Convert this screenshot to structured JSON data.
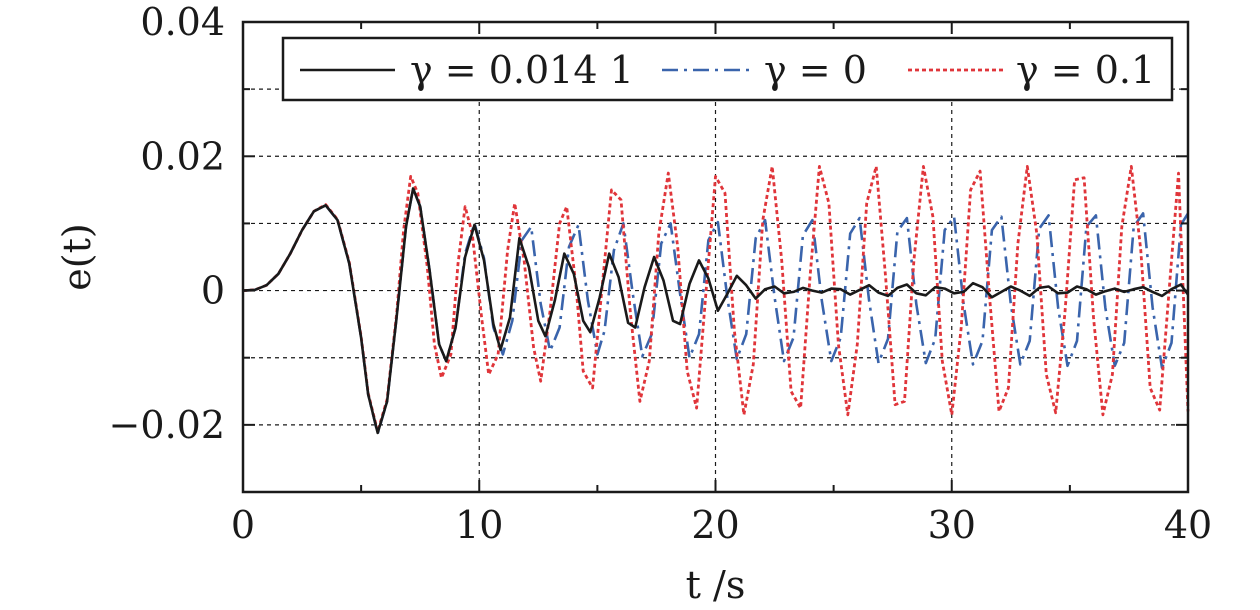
{
  "chart_data": {
    "type": "line",
    "xlabel": "t /s",
    "ylabel": "e(t)",
    "xlim": [
      0,
      40
    ],
    "ylim": [
      -0.03,
      0.04
    ],
    "xticks": [
      0,
      10,
      20,
      30,
      40
    ],
    "xtick_labels": [
      "0",
      "10",
      "20",
      "30",
      "40"
    ],
    "yticks": [
      -0.02,
      0,
      0.02,
      0.04
    ],
    "ytick_labels": [
      "−0.02",
      "0",
      "0.02",
      "0.04"
    ],
    "grid": true,
    "legend_position": "top-right",
    "series": [
      {
        "name": "γ = 0.014 1",
        "color": "#1a1a1a",
        "style": "solid",
        "points": [
          [
            0,
            0
          ],
          [
            0.5,
            0.0001
          ],
          [
            1,
            0.0008
          ],
          [
            1.5,
            0.0025
          ],
          [
            2,
            0.0055
          ],
          [
            2.5,
            0.009
          ],
          [
            3,
            0.0118
          ],
          [
            3.5,
            0.0127
          ],
          [
            4,
            0.0105
          ],
          [
            4.5,
            0.004
          ],
          [
            5,
            -0.007
          ],
          [
            5.3,
            -0.0155
          ],
          [
            5.7,
            -0.0212
          ],
          [
            6.1,
            -0.0165
          ],
          [
            6.5,
            -0.004
          ],
          [
            6.9,
            0.0095
          ],
          [
            7.2,
            0.0152
          ],
          [
            7.5,
            0.0125
          ],
          [
            7.9,
            0.003
          ],
          [
            8.3,
            -0.008
          ],
          [
            8.6,
            -0.0105
          ],
          [
            9,
            -0.0055
          ],
          [
            9.4,
            0.005
          ],
          [
            9.8,
            0.0098
          ],
          [
            10.2,
            0.0045
          ],
          [
            10.6,
            -0.005
          ],
          [
            10.9,
            -0.0088
          ],
          [
            11.3,
            -0.004
          ],
          [
            11.7,
            0.0078
          ],
          [
            12.1,
            0.0035
          ],
          [
            12.5,
            -0.0045
          ],
          [
            12.8,
            -0.0068
          ],
          [
            13.2,
            -0.0015
          ],
          [
            13.6,
            0.0055
          ],
          [
            14,
            0.0025
          ],
          [
            14.4,
            -0.0045
          ],
          [
            14.7,
            -0.0062
          ],
          [
            15.1,
            -0.001
          ],
          [
            15.5,
            0.0055
          ],
          [
            15.9,
            0.002
          ],
          [
            16.3,
            -0.0048
          ],
          [
            16.6,
            -0.0055
          ],
          [
            17,
            0.0005
          ],
          [
            17.4,
            0.005
          ],
          [
            17.8,
            0.0015
          ],
          [
            18.2,
            -0.0045
          ],
          [
            18.5,
            -0.005
          ],
          [
            18.9,
            0.001
          ],
          [
            19.3,
            0.0045
          ],
          [
            19.7,
            0.0018
          ],
          [
            20.1,
            -0.003
          ],
          [
            20.5,
            -0.0005
          ],
          [
            20.9,
            0.0022
          ],
          [
            21.3,
            0.0008
          ],
          [
            21.7,
            -0.0012
          ],
          [
            22.1,
            0.0002
          ],
          [
            22.5,
            0.0006
          ],
          [
            22.9,
            -0.0004
          ],
          [
            23.3,
            -0.0002
          ],
          [
            23.7,
            0.0004
          ],
          [
            24.1,
            0
          ],
          [
            24.5,
            -0.0003
          ],
          [
            24.9,
            0.0003
          ],
          [
            25.3,
            0.0002
          ],
          [
            25.7,
            -0.0006
          ],
          [
            26.1,
            0.0001
          ],
          [
            26.5,
            0.0008
          ],
          [
            26.9,
            -0.0003
          ],
          [
            27.3,
            -0.0008
          ],
          [
            27.7,
            0.0004
          ],
          [
            28.1,
            0.0009
          ],
          [
            28.5,
            -0.0004
          ],
          [
            28.9,
            -0.0007
          ],
          [
            29.3,
            0.0005
          ],
          [
            29.7,
            0.0003
          ],
          [
            30.1,
            -0.0004
          ],
          [
            30.5,
            -0.0002
          ],
          [
            30.9,
            0.0011
          ],
          [
            31.3,
            0.0005
          ],
          [
            31.7,
            -0.001
          ],
          [
            32.1,
            -0.0002
          ],
          [
            32.5,
            0.0006
          ],
          [
            32.9,
            0
          ],
          [
            33.3,
            -0.0008
          ],
          [
            33.7,
            0.0004
          ],
          [
            34.1,
            0.0006
          ],
          [
            34.5,
            -0.0004
          ],
          [
            34.9,
            -0.0003
          ],
          [
            35.3,
            0.0006
          ],
          [
            35.7,
            0.0002
          ],
          [
            36.1,
            -0.0006
          ],
          [
            36.5,
            -0.0001
          ],
          [
            36.9,
            0.0003
          ],
          [
            37.3,
            -0.0002
          ],
          [
            37.7,
            0.0002
          ],
          [
            38.1,
            0.0005
          ],
          [
            38.5,
            -0.0002
          ],
          [
            38.9,
            -0.0008
          ],
          [
            39.3,
            0.0002
          ],
          [
            39.7,
            0.0009
          ],
          [
            40,
            -0.0006
          ]
        ]
      },
      {
        "name": "γ = 0",
        "color": "#3a64ac",
        "style": "dashdot",
        "points": [
          [
            0,
            0
          ],
          [
            0.5,
            0.0001
          ],
          [
            1,
            0.0008
          ],
          [
            1.5,
            0.0025
          ],
          [
            2,
            0.0055
          ],
          [
            2.5,
            0.009
          ],
          [
            3,
            0.0118
          ],
          [
            3.5,
            0.0127
          ],
          [
            4,
            0.0105
          ],
          [
            4.5,
            0.004
          ],
          [
            5,
            -0.007
          ],
          [
            5.3,
            -0.0155
          ],
          [
            5.7,
            -0.0213
          ],
          [
            6.1,
            -0.0165
          ],
          [
            6.5,
            -0.004
          ],
          [
            6.9,
            0.0095
          ],
          [
            7.2,
            0.0152
          ],
          [
            7.5,
            0.0125
          ],
          [
            7.9,
            0.003
          ],
          [
            8.3,
            -0.008
          ],
          [
            8.6,
            -0.0105
          ],
          [
            9,
            -0.0055
          ],
          [
            9.4,
            0.0055
          ],
          [
            9.8,
            0.01
          ],
          [
            10.2,
            0.0048
          ],
          [
            10.6,
            -0.0055
          ],
          [
            11,
            -0.0095
          ],
          [
            11.4,
            -0.0045
          ],
          [
            11.8,
            0.0075
          ],
          [
            12.2,
            0.0095
          ],
          [
            12.6,
            -0.002
          ],
          [
            13,
            -0.009
          ],
          [
            13.4,
            -0.0055
          ],
          [
            13.8,
            0.0065
          ],
          [
            14.2,
            0.0098
          ],
          [
            14.6,
            -0.0015
          ],
          [
            15,
            -0.0095
          ],
          [
            15.3,
            -0.006
          ],
          [
            15.7,
            0.006
          ],
          [
            16.1,
            0.01
          ],
          [
            16.5,
            -0.0005
          ],
          [
            16.9,
            -0.0098
          ],
          [
            17.3,
            -0.0065
          ],
          [
            17.7,
            0.007
          ],
          [
            18.1,
            0.01
          ],
          [
            18.5,
            -0.0005
          ],
          [
            18.9,
            -0.01
          ],
          [
            19.3,
            -0.0065
          ],
          [
            19.7,
            0.0075
          ],
          [
            20.1,
            0.0102
          ],
          [
            20.5,
            -0.001
          ],
          [
            20.9,
            -0.0102
          ],
          [
            21.3,
            -0.0065
          ],
          [
            21.7,
            0.0078
          ],
          [
            22.1,
            0.0105
          ],
          [
            22.5,
            -0.001
          ],
          [
            22.9,
            -0.0105
          ],
          [
            23.3,
            -0.007
          ],
          [
            23.7,
            0.0082
          ],
          [
            24.1,
            0.0105
          ],
          [
            24.5,
            -0.0015
          ],
          [
            24.9,
            -0.0105
          ],
          [
            25.3,
            -0.007
          ],
          [
            25.7,
            0.0085
          ],
          [
            26.1,
            0.0108
          ],
          [
            26.5,
            -0.0015
          ],
          [
            26.9,
            -0.0108
          ],
          [
            27.3,
            -0.0072
          ],
          [
            27.7,
            0.0088
          ],
          [
            28.1,
            0.0108
          ],
          [
            28.5,
            -0.002
          ],
          [
            28.9,
            -0.0108
          ],
          [
            29.3,
            -0.0072
          ],
          [
            29.7,
            0.009
          ],
          [
            30.1,
            0.011
          ],
          [
            30.5,
            -0.002
          ],
          [
            30.9,
            -0.011
          ],
          [
            31.3,
            -0.0075
          ],
          [
            31.7,
            0.009
          ],
          [
            32.1,
            0.011
          ],
          [
            32.5,
            -0.002
          ],
          [
            32.9,
            -0.011
          ],
          [
            33.3,
            -0.0075
          ],
          [
            33.7,
            0.0092
          ],
          [
            34.1,
            0.0112
          ],
          [
            34.5,
            -0.0025
          ],
          [
            34.9,
            -0.0112
          ],
          [
            35.3,
            -0.0075
          ],
          [
            35.7,
            0.0095
          ],
          [
            36.1,
            0.0112
          ],
          [
            36.5,
            -0.0025
          ],
          [
            36.9,
            -0.0112
          ],
          [
            37.3,
            -0.0078
          ],
          [
            37.7,
            0.0095
          ],
          [
            38.1,
            0.0115
          ],
          [
            38.5,
            -0.0025
          ],
          [
            38.9,
            -0.0115
          ],
          [
            39.3,
            -0.0078
          ],
          [
            39.7,
            0.0098
          ],
          [
            40,
            0.0115
          ]
        ]
      },
      {
        "name": "γ = 0.1",
        "color": "#e0353a",
        "style": "dotted",
        "points": [
          [
            0,
            0
          ],
          [
            0.5,
            0.0001
          ],
          [
            1,
            0.0008
          ],
          [
            1.5,
            0.0025
          ],
          [
            2,
            0.0055
          ],
          [
            2.5,
            0.009
          ],
          [
            3,
            0.0118
          ],
          [
            3.5,
            0.0128
          ],
          [
            4,
            0.0106
          ],
          [
            4.5,
            0.0042
          ],
          [
            5,
            -0.0068
          ],
          [
            5.3,
            -0.0153
          ],
          [
            5.7,
            -0.021
          ],
          [
            6.1,
            -0.0162
          ],
          [
            6.5,
            -0.0035
          ],
          [
            6.8,
            0.009
          ],
          [
            7.1,
            0.017
          ],
          [
            7.4,
            0.0145
          ],
          [
            7.8,
            0.0035
          ],
          [
            8.1,
            -0.008
          ],
          [
            8.4,
            -0.013
          ],
          [
            8.8,
            -0.0095
          ],
          [
            9.1,
            0.004
          ],
          [
            9.4,
            0.0125
          ],
          [
            9.7,
            0.0085
          ],
          [
            10.1,
            -0.004
          ],
          [
            10.4,
            -0.0125
          ],
          [
            10.8,
            -0.0095
          ],
          [
            11.2,
            0.006
          ],
          [
            11.5,
            0.013
          ],
          [
            11.9,
            0.0045
          ],
          [
            12.3,
            -0.0085
          ],
          [
            12.6,
            -0.0135
          ],
          [
            13,
            -0.003
          ],
          [
            13.4,
            0.01
          ],
          [
            13.7,
            0.0125
          ],
          [
            14.1,
            0.0005
          ],
          [
            14.4,
            -0.012
          ],
          [
            14.8,
            -0.0145
          ],
          [
            15.2,
            0.0005
          ],
          [
            15.6,
            0.015
          ],
          [
            16,
            0.0135
          ],
          [
            16.4,
            -0.0035
          ],
          [
            16.8,
            -0.0165
          ],
          [
            17.2,
            -0.0105
          ],
          [
            17.6,
            0.0085
          ],
          [
            18,
            0.0175
          ],
          [
            18.4,
            0.0065
          ],
          [
            18.8,
            -0.012
          ],
          [
            19.2,
            -0.0175
          ],
          [
            19.6,
            0
          ],
          [
            20,
            0.017
          ],
          [
            20.4,
            0.0145
          ],
          [
            20.8,
            -0.006
          ],
          [
            21.2,
            -0.0185
          ],
          [
            21.6,
            -0.011
          ],
          [
            22,
            0.0105
          ],
          [
            22.4,
            0.0185
          ],
          [
            22.8,
            0.0045
          ],
          [
            23.2,
            -0.015
          ],
          [
            23.6,
            -0.0175
          ],
          [
            24,
            0.002
          ],
          [
            24.4,
            0.0185
          ],
          [
            24.8,
            0.013
          ],
          [
            25.2,
            -0.008
          ],
          [
            25.6,
            -0.0185
          ],
          [
            26,
            -0.008
          ],
          [
            26.4,
            0.013
          ],
          [
            26.8,
            0.0185
          ],
          [
            27.2,
            0.002
          ],
          [
            27.6,
            -0.017
          ],
          [
            28,
            -0.0165
          ],
          [
            28.4,
            0.0045
          ],
          [
            28.8,
            0.0185
          ],
          [
            29.2,
            0.011
          ],
          [
            29.6,
            -0.0105
          ],
          [
            30,
            -0.0185
          ],
          [
            30.4,
            -0.0055
          ],
          [
            30.8,
            0.015
          ],
          [
            31.2,
            0.0178
          ],
          [
            31.6,
            -0.001
          ],
          [
            32,
            -0.018
          ],
          [
            32.4,
            -0.0145
          ],
          [
            32.8,
            0.007
          ],
          [
            33.2,
            0.0185
          ],
          [
            33.6,
            0.0085
          ],
          [
            34,
            -0.0125
          ],
          [
            34.4,
            -0.0182
          ],
          [
            34.8,
            -0.003
          ],
          [
            35.2,
            0.0165
          ],
          [
            35.6,
            0.0168
          ],
          [
            36,
            -0.004
          ],
          [
            36.4,
            -0.0185
          ],
          [
            36.8,
            -0.0125
          ],
          [
            37.2,
            0.0095
          ],
          [
            37.6,
            0.0185
          ],
          [
            38,
            0.006
          ],
          [
            38.4,
            -0.0145
          ],
          [
            38.8,
            -0.0178
          ],
          [
            39.2,
            0
          ],
          [
            39.6,
            0.0175
          ],
          [
            40,
            -0.018
          ]
        ]
      }
    ]
  }
}
